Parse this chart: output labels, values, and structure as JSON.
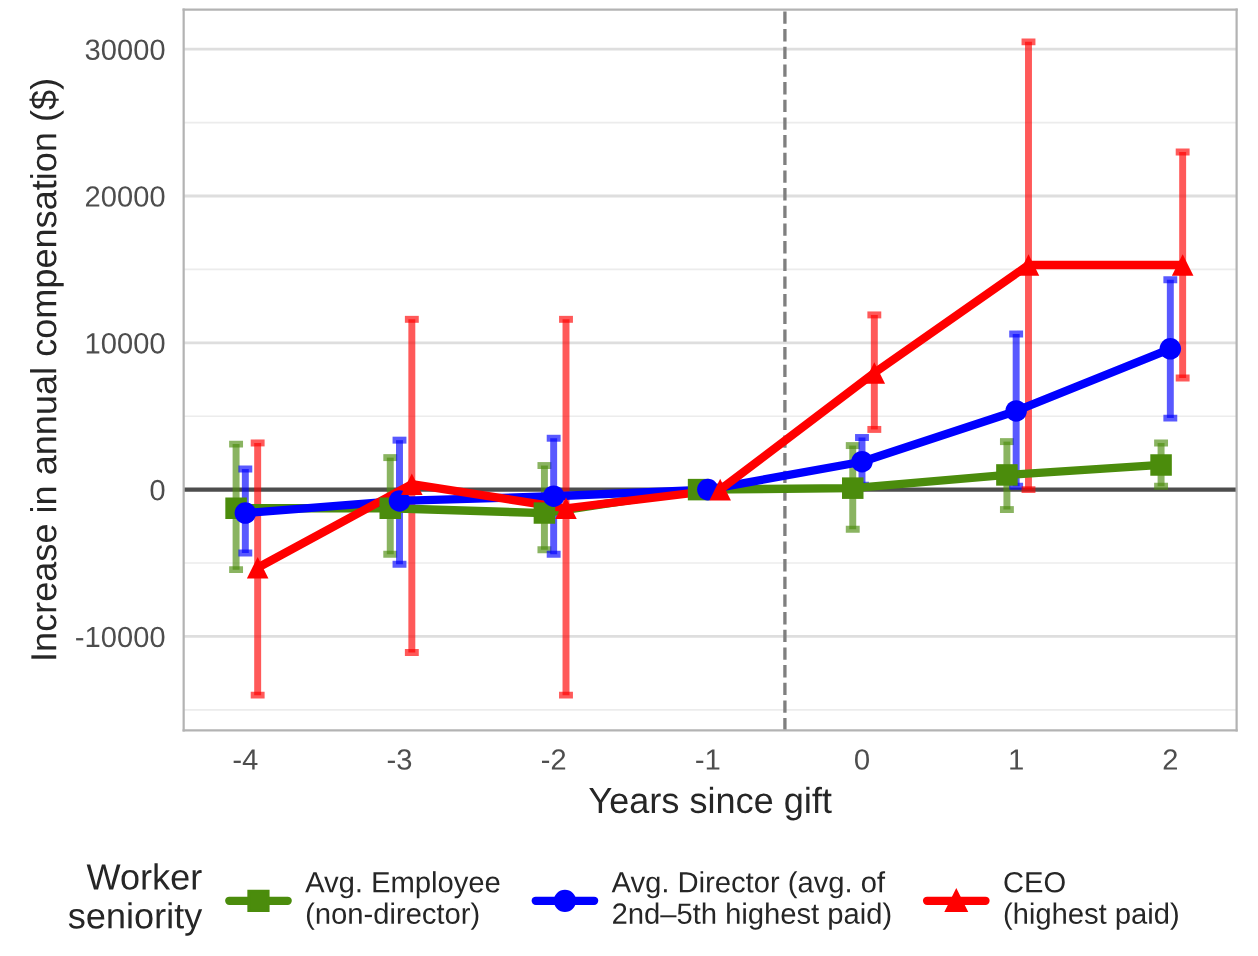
{
  "chart_data": {
    "type": "line",
    "xlabel": "Years since gift",
    "ylabel": "Increase in annual compensation ($)",
    "legend_title": "Worker\nseniority",
    "legend": "bottom",
    "grid": "y",
    "line_style": "solid",
    "xlim": [
      -4.4,
      2.43
    ],
    "xticks": [
      -4,
      -3,
      -2,
      -1,
      0,
      1,
      2
    ],
    "ylim": [
      -16400,
      32700
    ],
    "yticks": [
      {
        "value": -15000,
        "label": null
      },
      -10000,
      {
        "value": -5000,
        "label": null
      },
      0,
      {
        "value": 5000,
        "label": null
      },
      10000,
      {
        "value": 15000,
        "label": null
      },
      20000,
      {
        "value": 25000,
        "label": null
      },
      30000
    ],
    "ref_lines": [
      {
        "axis": "x",
        "value": -0.5,
        "color": "#7f7f7f",
        "line_style": "dashed"
      },
      {
        "axis": "y",
        "value": 0,
        "color": "#4d4d4d",
        "line_style": "solid"
      }
    ],
    "series": [
      {
        "name": "Avg. Employee\n(non-director)",
        "color": "#4b8c0c",
        "marker": "square",
        "x": [
          -4.06,
          -3.06,
          -2.06,
          -1.06,
          -0.06,
          0.94,
          1.94
        ],
        "values": [
          -1270,
          -1270,
          -1600,
          0,
          100,
          1000,
          1680
        ],
        "errors": [
          [
            -5450,
            3100
          ],
          [
            -4400,
            2180
          ],
          [
            -4090,
            1640
          ],
          null,
          [
            -2700,
            3000
          ],
          [
            -1360,
            3270
          ],
          [
            230,
            3180
          ]
        ]
      },
      {
        "name": "Avg. Director (avg. of\n2nd–5th highest paid)",
        "color": "#0000ff",
        "marker": "circle",
        "x": [
          -4,
          -3,
          -2,
          -1,
          0,
          1,
          2
        ],
        "values": [
          -1600,
          -770,
          -450,
          0,
          1900,
          5360,
          9590
        ],
        "errors": [
          [
            -4320,
            1400
          ],
          [
            -5090,
            3370
          ],
          [
            -4400,
            3500
          ],
          null,
          [
            300,
            3550
          ],
          [
            230,
            10600
          ],
          [
            4870,
            14300
          ]
        ]
      },
      {
        "name": "CEO\n(highest paid)",
        "color": "#ff0000",
        "marker": "triangle",
        "x": [
          -3.92,
          -2.92,
          -1.92,
          -0.92,
          0.08,
          1.08,
          2.08
        ],
        "values": [
          -5320,
          370,
          -1270,
          0,
          7950,
          15300,
          15300
        ],
        "errors": [
          [
            -14000,
            3180
          ],
          [
            -11100,
            11600
          ],
          [
            -14000,
            11600
          ],
          null,
          [
            4100,
            11900
          ],
          [
            0,
            30500
          ],
          [
            7600,
            23000
          ]
        ]
      }
    ]
  }
}
